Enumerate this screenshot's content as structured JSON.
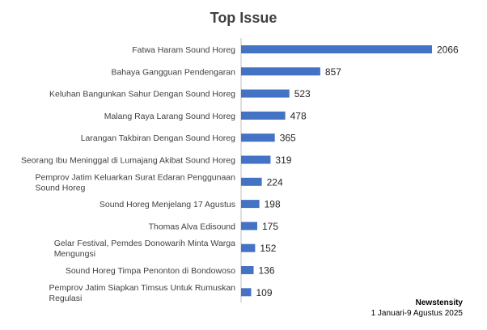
{
  "chart_data": {
    "type": "bar",
    "orientation": "horizontal",
    "title": "Top Issue",
    "xlabel": "",
    "ylabel": "",
    "categories": [
      "Fatwa Haram Sound Horeg",
      "Bahaya Gangguan Pendengaran",
      "Keluhan Bangunkan Sahur Dengan Sound Horeg",
      "Malang Raya Larang Sound Horeg",
      "Larangan Takbiran Dengan Sound Horeg",
      "Seorang Ibu Meninggal di Lumajang Akibat Sound Horeg",
      "Pemprov Jatim Keluarkan Surat Edaran Penggunaan Sound Horeg",
      "Sound Horeg Menjelang 17 Agustus",
      "Thomas Alva Edisound",
      "Gelar Festival, Pemdes Donowarih Minta Warga Mengungsi",
      "Sound Horeg Timpa Penonton di Bondowoso",
      "Pemprov Jatim Siapkan Timsus Untuk Rumuskan Regulasi"
    ],
    "values": [
      2066,
      857,
      523,
      478,
      365,
      319,
      224,
      198,
      175,
      152,
      136,
      109
    ],
    "xlim": [
      0,
      2066
    ],
    "grid": false,
    "legend": "none",
    "bar_color": "#4472c4",
    "data_labels": true
  },
  "source": {
    "name": "Newstensity",
    "period": "1 Januari-9 Agustus 2025"
  }
}
